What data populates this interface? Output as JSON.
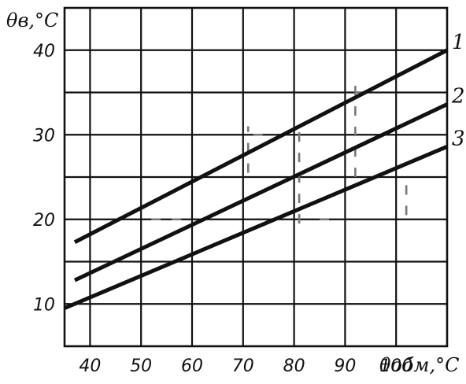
{
  "chart_data": {
    "type": "line",
    "ylabel": "θв,°C",
    "xlabel": "θобм,°C",
    "xlim": [
      35,
      110
    ],
    "ylim": [
      5,
      45
    ],
    "x_ticks": [
      40,
      50,
      60,
      70,
      80,
      90,
      100
    ],
    "y_ticks": [
      10,
      20,
      30,
      40
    ],
    "grid": true,
    "series": [
      {
        "name": "1",
        "x": [
          37,
          110
        ],
        "y": [
          17.3,
          40.0
        ]
      },
      {
        "name": "2",
        "x": [
          37,
          110
        ],
        "y": [
          12.8,
          33.6
        ]
      },
      {
        "name": "3",
        "x": [
          35,
          110
        ],
        "y": [
          9.5,
          28.6
        ]
      }
    ],
    "construction_lines": [
      {
        "x": [
          52,
          58
        ],
        "y": [
          20,
          20
        ]
      },
      {
        "x": [
          72,
          76
        ],
        "y": [
          30,
          30
        ]
      },
      {
        "x": [
          92,
          96
        ],
        "y": [
          35,
          35
        ]
      },
      {
        "x": [
          85,
          89
        ],
        "y": [
          20,
          20
        ]
      },
      {
        "x": [
          71,
          71
        ],
        "y": [
          25.5,
          31
        ]
      },
      {
        "x": [
          81,
          81
        ],
        "y": [
          19.5,
          31
        ]
      },
      {
        "x": [
          92,
          92
        ],
        "y": [
          25,
          36
        ]
      },
      {
        "x": [
          102,
          102
        ],
        "y": [
          20.5,
          25
        ]
      }
    ]
  }
}
